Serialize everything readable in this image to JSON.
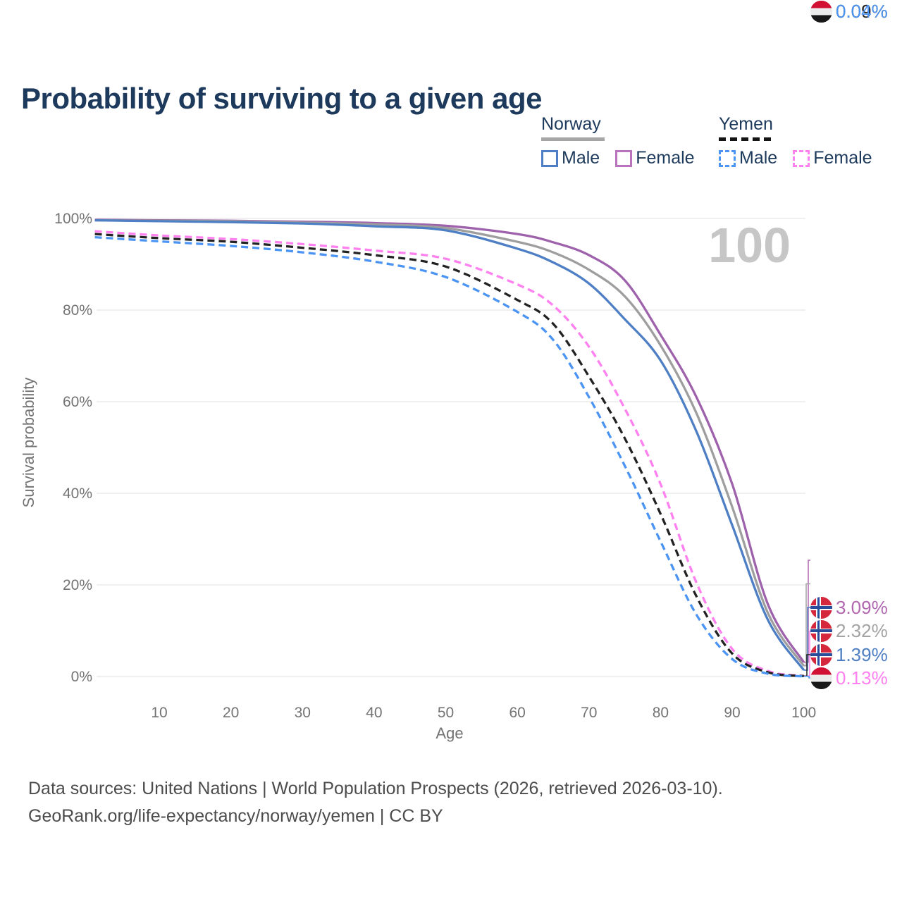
{
  "title": "Probability of surviving to a given age",
  "legend": {
    "groups": [
      {
        "country": "Norway",
        "line_style": "solid",
        "line_color": "#a6a6a6",
        "items": [
          {
            "label": "Male",
            "color": "#4e7fc4",
            "style": "solid"
          },
          {
            "label": "Female",
            "color": "#b973be",
            "style": "solid"
          }
        ]
      },
      {
        "country": "Yemen",
        "line_style": "dashed",
        "line_color": "#141414",
        "items": [
          {
            "label": "Male",
            "color": "#4b94f4",
            "style": "dashed"
          },
          {
            "label": "Female",
            "color": "#ff80ef",
            "style": "dashed"
          }
        ]
      }
    ]
  },
  "axes": {
    "y_label": "Survival probability",
    "x_label": "Age",
    "y_ticks": [
      {
        "value": 100,
        "label": "100%"
      },
      {
        "value": 80,
        "label": "80%"
      },
      {
        "value": 60,
        "label": "60%"
      },
      {
        "value": 40,
        "label": "40%"
      },
      {
        "value": 20,
        "label": "20%"
      },
      {
        "value": 0,
        "label": "0%"
      }
    ],
    "x_ticks": [
      10,
      20,
      30,
      40,
      50,
      60,
      70,
      80,
      90,
      100
    ]
  },
  "watermark": "100",
  "chart_data": {
    "type": "line",
    "title": "Probability of surviving to a given age",
    "xlabel": "Age",
    "ylabel": "Survival probability",
    "ylim": [
      0,
      100
    ],
    "xlim": [
      1,
      100
    ],
    "grid": "horizontal",
    "legend_position": "top-right",
    "x_ages": [
      1,
      10,
      20,
      30,
      40,
      50,
      60,
      65,
      70,
      75,
      80,
      85,
      90,
      95,
      100
    ],
    "series": [
      {
        "name": "Norway Female",
        "color": "#9e61ab",
        "dash": "solid",
        "values": [
          99.7,
          99.6,
          99.5,
          99.3,
          99.0,
          98.4,
          96.6,
          94.8,
          92.0,
          86.5,
          74.6,
          61.0,
          42.0,
          15.7,
          3.09
        ]
      },
      {
        "name": "Norway Both sexes",
        "color": "#9e9e9e",
        "dash": "solid",
        "values": [
          99.6,
          99.5,
          99.4,
          99.1,
          98.7,
          97.9,
          94.9,
          92.6,
          88.8,
          83.0,
          72.3,
          57.5,
          37.0,
          13.8,
          2.32
        ]
      },
      {
        "name": "Norway Male",
        "color": "#4e7fc4",
        "dash": "solid",
        "values": [
          99.6,
          99.4,
          99.2,
          98.9,
          98.3,
          97.4,
          93.4,
          90.4,
          85.8,
          78.0,
          69.0,
          53.5,
          33.0,
          12.3,
          1.39
        ]
      },
      {
        "name": "Yemen Female",
        "color": "#ff80ef",
        "dash": "dashed",
        "values": [
          97.2,
          96.3,
          95.5,
          94.4,
          93.0,
          91.2,
          85.6,
          81.0,
          72.0,
          58.5,
          42.0,
          20.5,
          6.0,
          1.2,
          0.13
        ]
      },
      {
        "name": "Yemen Both sexes",
        "color": "#222222",
        "dash": "dashed",
        "values": [
          96.6,
          95.7,
          94.9,
          93.6,
          92.0,
          89.5,
          82.2,
          77.0,
          65.5,
          52.0,
          35.5,
          17.5,
          5.0,
          0.9,
          0.09
        ]
      },
      {
        "name": "Yemen Male",
        "color": "#4b94f4",
        "dash": "dashed",
        "values": [
          95.9,
          95.0,
          94.0,
          92.6,
          90.6,
          87.2,
          79.6,
          73.5,
          61.0,
          46.0,
          29.5,
          13.5,
          3.8,
          0.6,
          0.04
        ]
      }
    ]
  },
  "end_labels": [
    {
      "series": "Norway Female",
      "flag": "norway",
      "value": "3.09%",
      "color": "#b168b1"
    },
    {
      "series": "Norway Both sexes",
      "flag": "norway",
      "value": "2.32%",
      "color": "#a3a3a3"
    },
    {
      "series": "Norway Male",
      "flag": "norway",
      "value": "1.39%",
      "color": "#4e7fc4"
    },
    {
      "series": "Yemen Female",
      "flag": "yemen",
      "value": "0.13%",
      "color": "#ff80ef"
    },
    {
      "series": "Yemen Both sexes",
      "flag": "yemen",
      "value": "0.09%",
      "color": "#222222"
    },
    {
      "series": "Yemen Male",
      "flag": "yemen",
      "value": "0.04%",
      "color": "#4b94f4"
    }
  ],
  "footer": {
    "line1": "Data sources: United Nations | World Population Prospects (2026, retrieved 2026-03-10).",
    "line2": "GeoRank.org/life-expectancy/norway/yemen | CC BY"
  }
}
